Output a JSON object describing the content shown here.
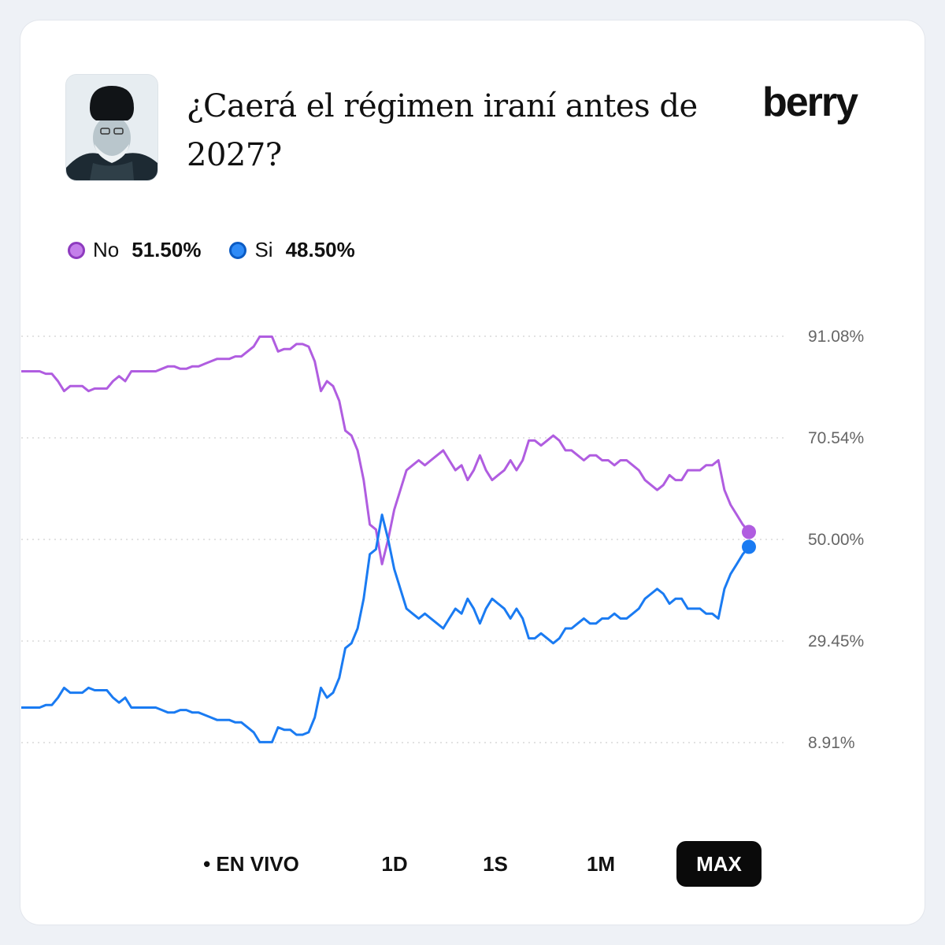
{
  "header": {
    "title": "¿Caerá el régimen iraní antes de 2027?",
    "brand": "berry"
  },
  "legend": [
    {
      "name": "No",
      "value": "51.50%",
      "color": "#b05de0"
    },
    {
      "name": "Si",
      "value": "48.50%",
      "color": "#1a7bf2"
    }
  ],
  "controls": {
    "live": "• EN VIVO",
    "d1": "1D",
    "w1": "1S",
    "m1": "1M",
    "max": "MAX",
    "active": "MAX"
  },
  "chart_data": {
    "type": "line",
    "yticks": [
      "91.08%",
      "70.54%",
      "50.00%",
      "29.45%",
      "8.91%"
    ],
    "ylim": [
      8.91,
      91.08
    ],
    "grid": true,
    "series": [
      {
        "name": "No",
        "color": "#b05de0",
        "values": [
          84,
          84,
          84,
          84,
          83.5,
          83.5,
          82,
          80,
          81,
          81,
          81,
          80,
          80.5,
          80.5,
          80.5,
          82,
          83,
          82,
          84,
          84,
          84,
          84,
          84,
          84.5,
          85,
          85,
          84.5,
          84.5,
          85,
          85,
          85.5,
          86,
          86.5,
          86.5,
          86.5,
          87,
          87,
          88,
          89,
          91,
          91,
          91,
          88,
          88.5,
          88.5,
          89.5,
          89.5,
          89,
          86,
          80,
          82,
          81,
          78,
          72,
          71,
          68,
          62,
          53,
          52,
          45,
          50,
          56,
          60,
          64,
          65,
          66,
          65,
          66,
          67,
          68,
          66,
          64,
          65,
          62,
          64,
          67,
          64,
          62,
          63,
          64,
          66,
          64,
          66,
          70,
          70,
          69,
          70,
          71,
          70,
          68,
          68,
          67,
          66,
          67,
          67,
          66,
          66,
          65,
          66,
          66,
          65,
          64,
          62,
          61,
          60,
          61,
          63,
          62,
          62,
          64,
          64,
          64,
          65,
          65,
          66,
          60,
          57,
          55,
          53,
          51.5
        ],
        "last_value": 51.5
      },
      {
        "name": "Si",
        "color": "#1a7bf2",
        "values": [
          16,
          16,
          16,
          16,
          16.5,
          16.5,
          18,
          20,
          19,
          19,
          19,
          20,
          19.5,
          19.5,
          19.5,
          18,
          17,
          18,
          16,
          16,
          16,
          16,
          16,
          15.5,
          15,
          15,
          15.5,
          15.5,
          15,
          15,
          14.5,
          14,
          13.5,
          13.5,
          13.5,
          13,
          13,
          12,
          11,
          9,
          9,
          9,
          12,
          11.5,
          11.5,
          10.5,
          10.5,
          11,
          14,
          20,
          18,
          19,
          22,
          28,
          29,
          32,
          38,
          47,
          48,
          55,
          50,
          44,
          40,
          36,
          35,
          34,
          35,
          34,
          33,
          32,
          34,
          36,
          35,
          38,
          36,
          33,
          36,
          38,
          37,
          36,
          34,
          36,
          34,
          30,
          30,
          31,
          30,
          29,
          30,
          32,
          32,
          33,
          34,
          33,
          33,
          34,
          34,
          35,
          34,
          34,
          35,
          36,
          38,
          39,
          40,
          39,
          37,
          38,
          38,
          36,
          36,
          36,
          35,
          35,
          34,
          40,
          43,
          45,
          47,
          48.5
        ],
        "last_value": 48.5
      }
    ]
  }
}
